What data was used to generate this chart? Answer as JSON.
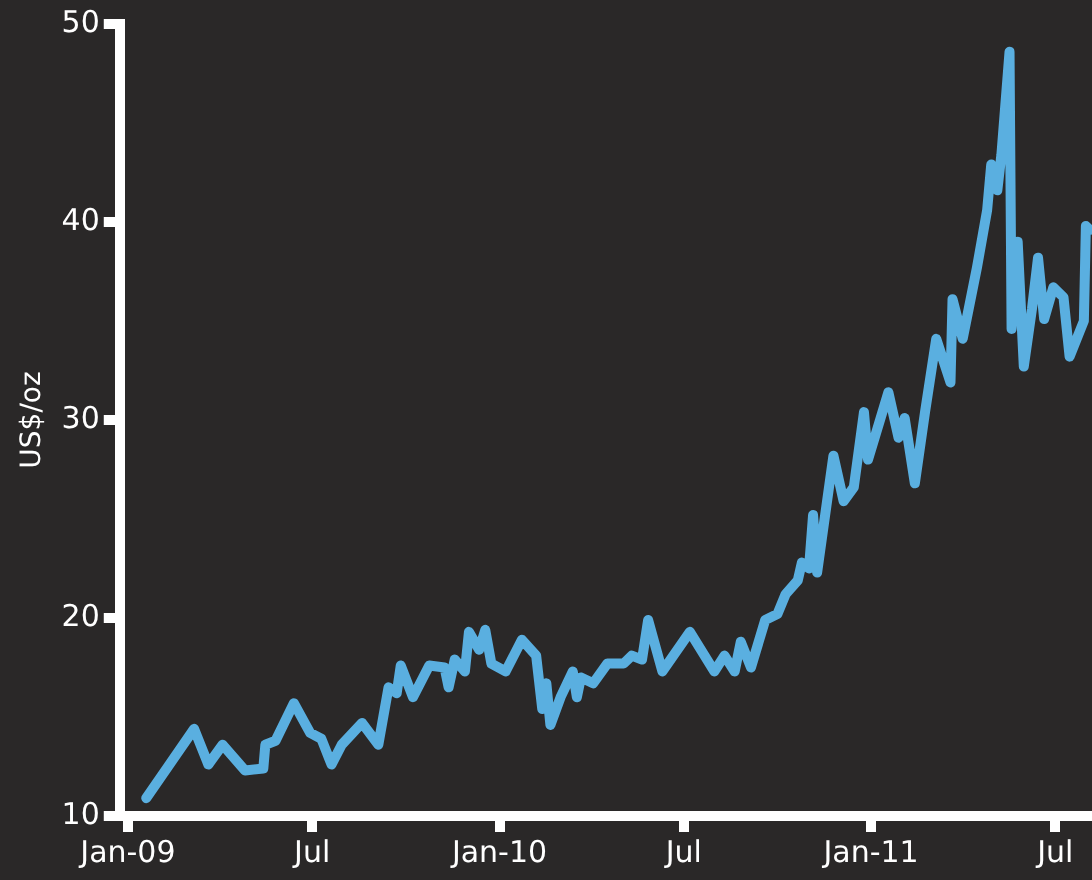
{
  "chart_data": {
    "type": "line",
    "ylabel": "US$/oz",
    "x": [
      "2009-01-19",
      "2009-03-07",
      "2009-03-21",
      "2009-04-04",
      "2009-04-26",
      "2009-05-14",
      "2009-05-16",
      "2009-05-26",
      "2009-06-13",
      "2009-06-29",
      "2009-07-10",
      "2009-07-20",
      "2009-07-30",
      "2009-08-19",
      "2009-09-04",
      "2009-09-14",
      "2009-09-22",
      "2009-09-26",
      "2009-10-08",
      "2009-10-24",
      "2009-11-08",
      "2009-11-12",
      "2009-11-18",
      "2009-11-28",
      "2009-12-02",
      "2009-12-12",
      "2009-12-18",
      "2009-12-24",
      "2010-01-07",
      "2010-01-23",
      "2010-02-06",
      "2010-02-12",
      "2010-02-16",
      "2010-02-20",
      "2010-03-02",
      "2010-03-14",
      "2010-03-18",
      "2010-03-22",
      "2010-04-03",
      "2010-04-17",
      "2010-05-03",
      "2010-05-11",
      "2010-05-21",
      "2010-05-27",
      "2010-06-10",
      "2010-07-07",
      "2010-07-31",
      "2010-08-10",
      "2010-08-20",
      "2010-08-26",
      "2010-09-05",
      "2010-09-19",
      "2010-10-01",
      "2010-10-09",
      "2010-10-21",
      "2010-10-25",
      "2010-11-01",
      "2010-11-05",
      "2010-11-09",
      "2010-11-25",
      "2010-12-05",
      "2010-12-15",
      "2010-12-25",
      "2010-12-29",
      "2011-01-18",
      "2011-01-28",
      "2011-02-03",
      "2011-02-13",
      "2011-02-23",
      "2011-03-06",
      "2011-03-20",
      "2011-03-22",
      "2011-04-01",
      "2011-04-15",
      "2011-04-25",
      "2011-04-29",
      "2011-05-05",
      "2011-05-09",
      "2011-05-17",
      "2011-05-19",
      "2011-05-25",
      "2011-05-31",
      "2011-06-08",
      "2011-06-14",
      "2011-06-20",
      "2011-06-29",
      "2011-07-09",
      "2011-07-15",
      "2011-07-29",
      "2011-07-31",
      "2011-08-04"
    ],
    "series": [
      {
        "color": "#5aafe0",
        "values": [
          10.9,
          14.4,
          12.6,
          13.6,
          12.3,
          12.4,
          13.6,
          13.8,
          15.7,
          14.2,
          13.9,
          12.6,
          13.6,
          14.7,
          13.6,
          16.5,
          16.2,
          17.6,
          16.0,
          17.6,
          17.5,
          16.5,
          17.9,
          17.3,
          19.3,
          18.4,
          19.4,
          17.7,
          17.3,
          18.9,
          18.1,
          15.4,
          16.7,
          14.6,
          16.0,
          17.3,
          16.0,
          17.0,
          16.7,
          17.7,
          17.7,
          18.1,
          17.9,
          19.9,
          17.3,
          19.3,
          17.3,
          18.1,
          17.3,
          18.8,
          17.5,
          19.9,
          20.2,
          21.2,
          21.9,
          22.8,
          22.5,
          25.2,
          22.3,
          28.2,
          25.9,
          26.6,
          30.4,
          28.0,
          31.4,
          29.1,
          30.1,
          26.8,
          30.4,
          34.1,
          31.9,
          36.1,
          34.1,
          37.7,
          40.6,
          42.9,
          41.6,
          43.4,
          48.6,
          34.6,
          39.0,
          32.7,
          35.6,
          38.2,
          35.1,
          36.7,
          36.2,
          33.2,
          35.0,
          39.8,
          39.6
        ]
      }
    ],
    "xlim": [
      "2008-12-24",
      "2011-08-06"
    ],
    "xticks": [
      {
        "value": "2009-01",
        "label": "Jan-09"
      },
      {
        "value": "2009-07",
        "label": "Jul"
      },
      {
        "value": "2010-01",
        "label": "Jan-10"
      },
      {
        "value": "2010-07",
        "label": "Jul"
      },
      {
        "value": "2011-01",
        "label": "Jan-11"
      },
      {
        "value": "2011-07",
        "label": "Jul"
      }
    ],
    "ylim": [
      10,
      50
    ],
    "yticks": [
      10,
      20,
      30,
      40,
      50
    ],
    "marker": "none",
    "line_style": "solid",
    "legend": false
  }
}
